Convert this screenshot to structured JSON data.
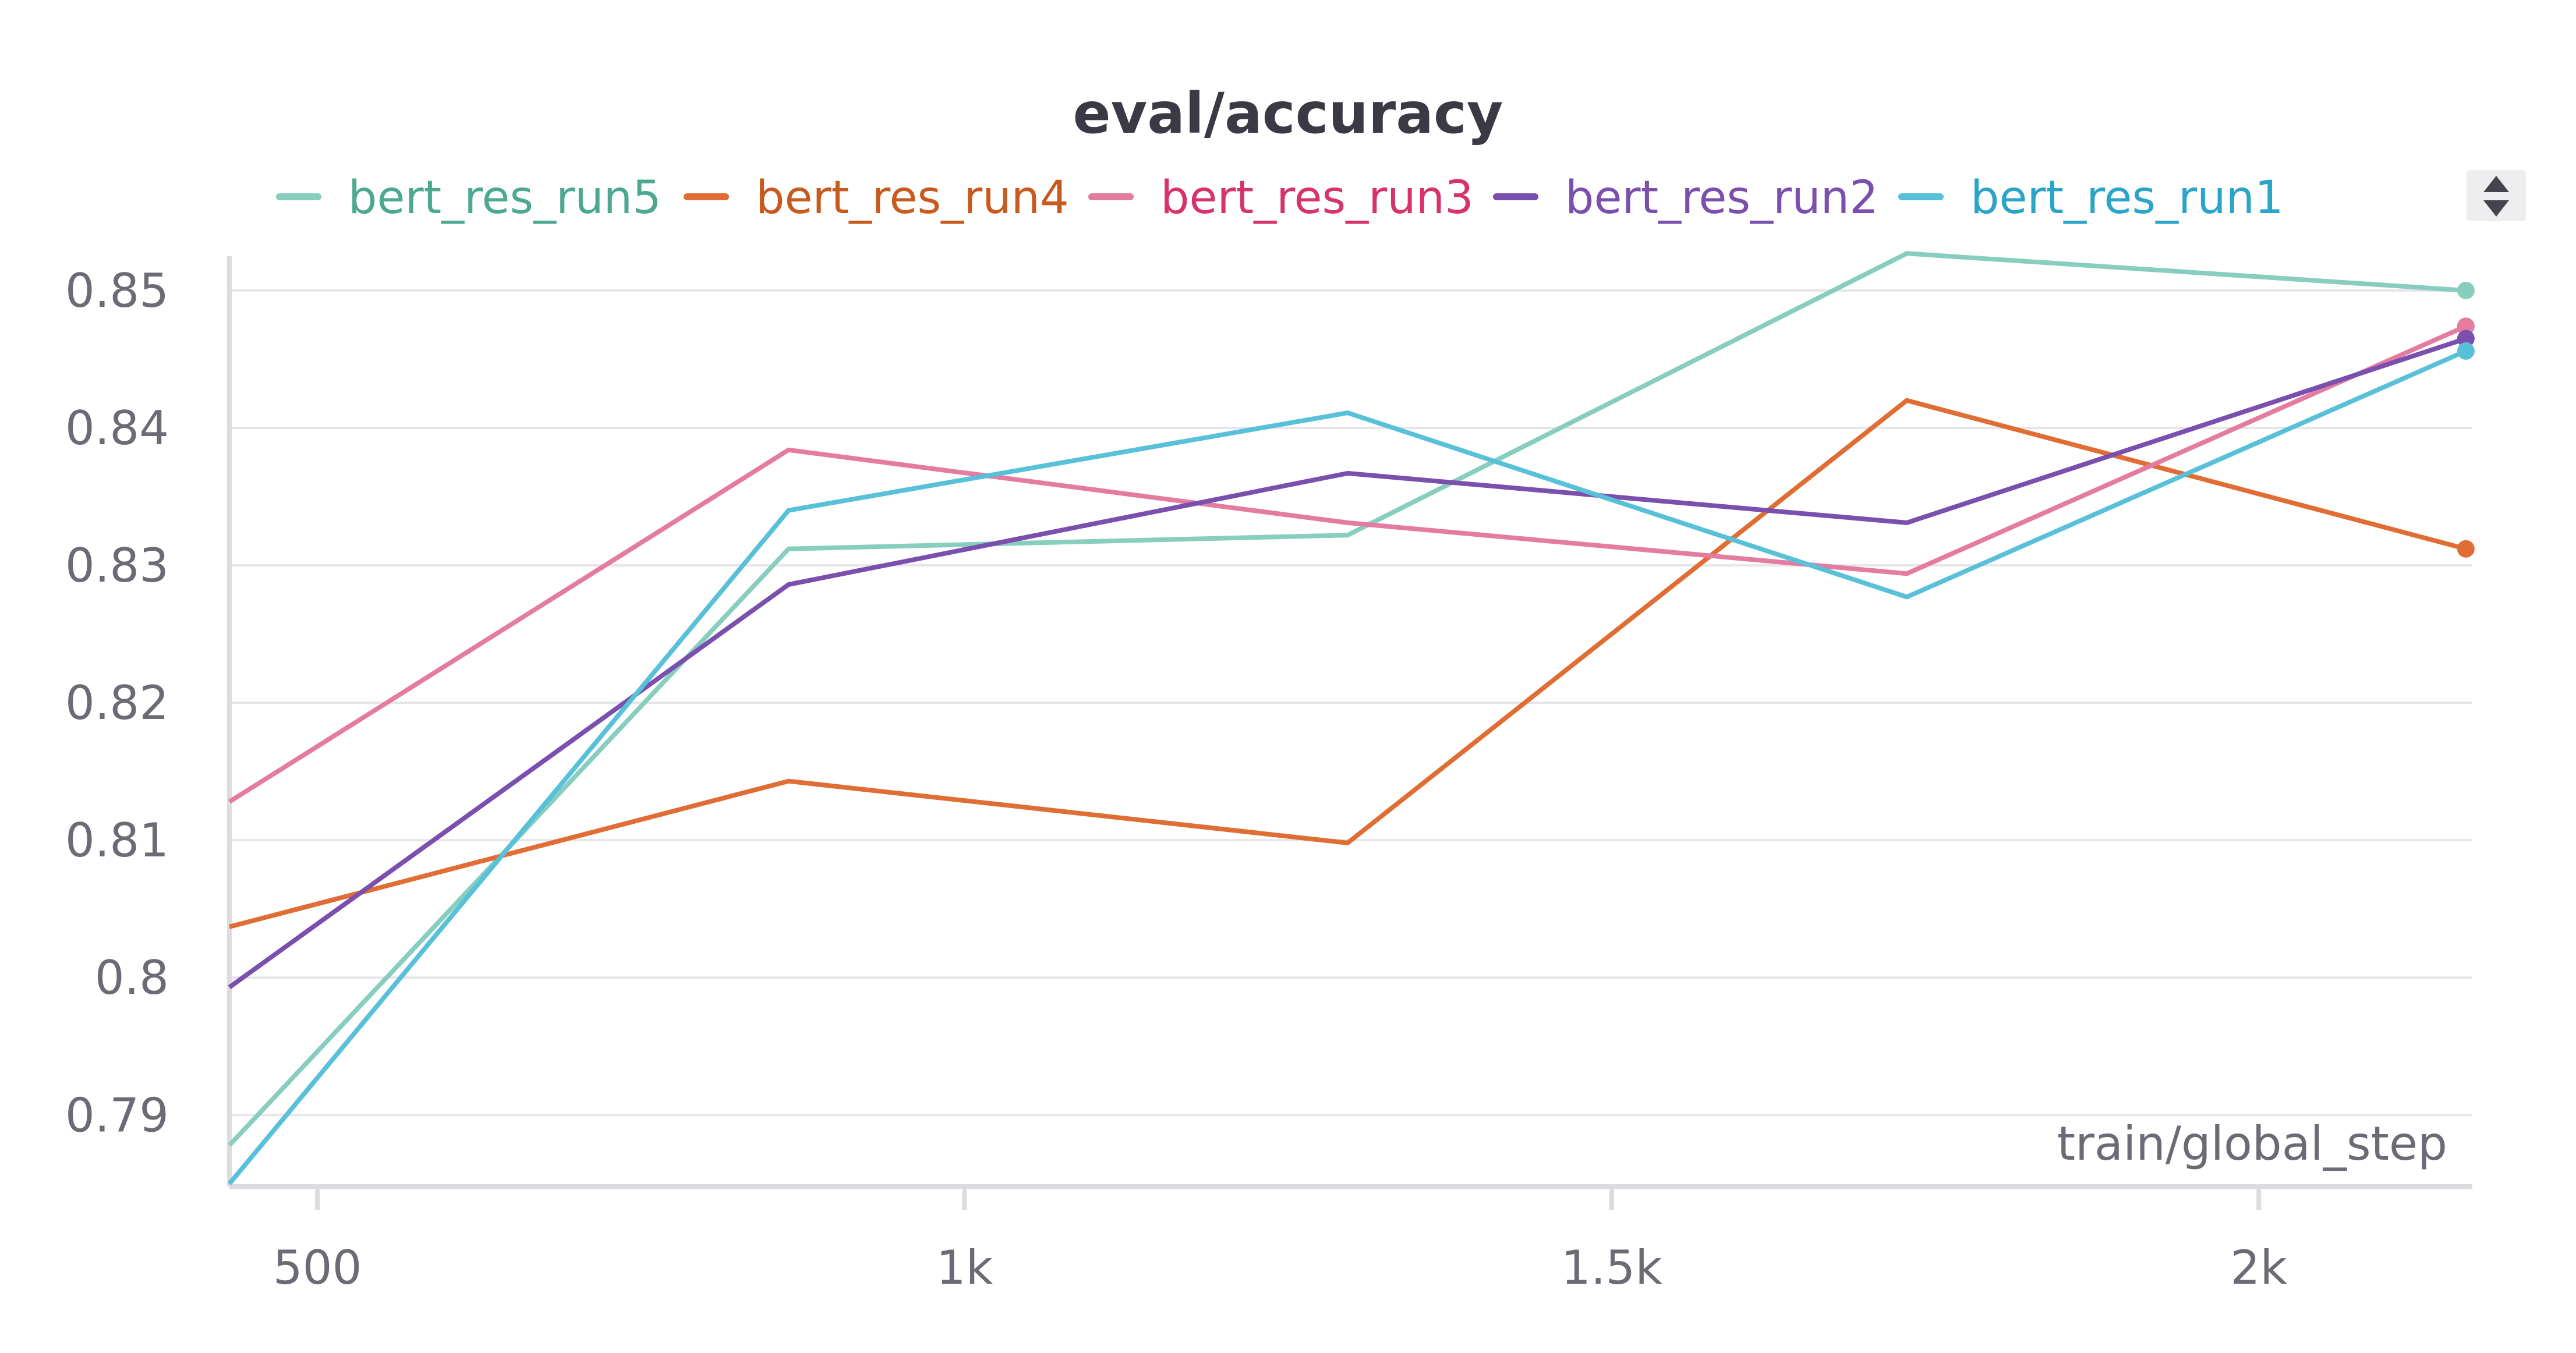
{
  "chart_data": {
    "type": "line",
    "title": "eval/accuracy",
    "xlabel": "train/global_step",
    "ylabel": "",
    "xlim": [
      432,
      2165
    ],
    "ylim": [
      0.7848,
      0.8525
    ],
    "x_ticks": [
      500,
      1000,
      1500,
      2000
    ],
    "x_tick_labels": [
      "500",
      "1k",
      "1.5k",
      "2k"
    ],
    "y_ticks": [
      0.79,
      0.8,
      0.81,
      0.82,
      0.83,
      0.84,
      0.85
    ],
    "y_tick_labels": [
      "0.79",
      "0.8",
      "0.81",
      "0.82",
      "0.83",
      "0.84",
      "0.85"
    ],
    "grid": true,
    "legend_position": "top",
    "series": [
      {
        "name": "bert_res_run5",
        "color": "#87cebf",
        "text_color": "#4da892",
        "points": [
          [
            432,
            0.7878
          ],
          [
            864,
            0.8312
          ],
          [
            1296,
            0.8322
          ],
          [
            1728,
            0.8527
          ],
          [
            2160,
            0.85
          ]
        ]
      },
      {
        "name": "bert_res_run4",
        "color": "#e06d34",
        "text_color": "#c85a1f",
        "points": [
          [
            432,
            0.8037
          ],
          [
            864,
            0.8143
          ],
          [
            1296,
            0.8098
          ],
          [
            1728,
            0.842
          ],
          [
            2160,
            0.8312
          ]
        ]
      },
      {
        "name": "bert_res_run3",
        "color": "#e47ba0",
        "text_color": "#d6336c",
        "points": [
          [
            432,
            0.8128
          ],
          [
            864,
            0.8384
          ],
          [
            1296,
            0.8331
          ],
          [
            1728,
            0.8294
          ],
          [
            2160,
            0.8474
          ]
        ]
      },
      {
        "name": "bert_res_run2",
        "color": "#7a4fae",
        "text_color": "#7a4fae",
        "points": [
          [
            432,
            0.7993
          ],
          [
            864,
            0.8286
          ],
          [
            1296,
            0.8367
          ],
          [
            1728,
            0.8331
          ],
          [
            2160,
            0.8465
          ]
        ]
      },
      {
        "name": "bert_res_run1",
        "color": "#58c0d9",
        "text_color": "#2aa4c8",
        "points": [
          [
            432,
            0.785
          ],
          [
            864,
            0.834
          ],
          [
            1296,
            0.8411
          ],
          [
            1728,
            0.8277
          ],
          [
            2160,
            0.8456
          ]
        ]
      }
    ]
  },
  "legend_toggle_icon": "sort-arrows-icon"
}
